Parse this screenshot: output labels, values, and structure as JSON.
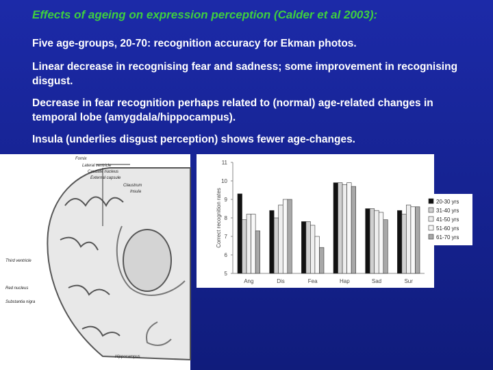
{
  "slide": {
    "title": "Effects of ageing on expression perception (Calder et al 2003):",
    "bullets": [
      "Five age-groups, 20-70: recognition accuracy for Ekman photos.",
      "Linear decrease in recognising fear and sadness; some improvement in recognising disgust.",
      "Decrease in fear recognition perhaps related to (normal) age-related changes in temporal lobe (amygdala/hippocampus).",
      "Insula (underlies disgust perception) shows fewer age-changes."
    ]
  },
  "diagram": {
    "labels": [
      "Fornix",
      "Lateral ventricle",
      "Caudate nucleus",
      "External capsule",
      "Claustrum",
      "Insula",
      "Third ventricle",
      "Red nucleus",
      "Substantia nigra",
      "Hippocampus"
    ]
  },
  "chart_data": {
    "type": "bar",
    "y_label": "Correct recognition rates",
    "categories": [
      "Ang",
      "Dis",
      "Fea",
      "Hap",
      "Sad",
      "Sur"
    ],
    "series": [
      {
        "name": "20-30 yrs",
        "color": "#111111",
        "values": [
          9.3,
          8.4,
          7.8,
          9.9,
          8.5,
          8.4
        ]
      },
      {
        "name": "31-40 yrs",
        "color": "#d0d0d0",
        "values": [
          7.9,
          8.0,
          7.8,
          9.9,
          8.5,
          8.2
        ]
      },
      {
        "name": "41-50 yrs",
        "color": "#eeeeee",
        "values": [
          8.2,
          8.7,
          7.6,
          9.8,
          8.4,
          8.7
        ]
      },
      {
        "name": "51-60 yrs",
        "color": "#f8f8f8",
        "values": [
          8.2,
          9.0,
          7.0,
          9.9,
          8.3,
          8.6
        ]
      },
      {
        "name": "61-70 yrs",
        "color": "#a8a8a8",
        "values": [
          7.3,
          9.0,
          6.4,
          9.7,
          7.9,
          8.6
        ]
      }
    ],
    "ylim": [
      5,
      11
    ],
    "yticks": [
      5,
      6,
      7,
      8,
      9,
      10,
      11
    ],
    "legend": "right"
  }
}
